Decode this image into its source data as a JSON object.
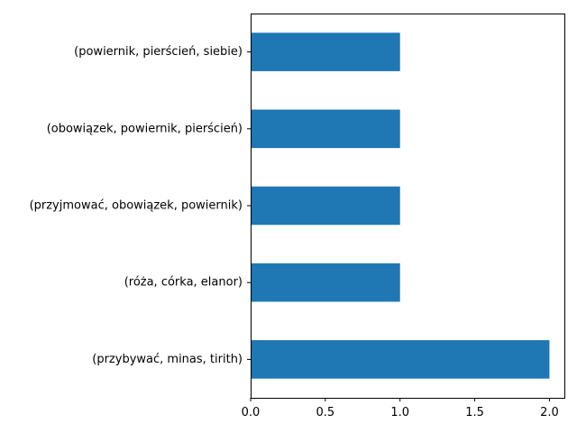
{
  "chart_data": {
    "type": "bar",
    "orientation": "horizontal",
    "categories": [
      "(przybywać, minas, tirith)",
      "(róża, córka, elanor)",
      "(przyjmować, obowiązek, powiernik)",
      "(obowiązek, powiernik, pierścień)",
      "(powiernik, pierścień, siebie)"
    ],
    "values": [
      2,
      1,
      1,
      1,
      1
    ],
    "xlim": [
      0,
      2.1
    ],
    "xticks": [
      0.0,
      0.5,
      1.0,
      1.5,
      2.0
    ],
    "xtick_labels": [
      "0.0",
      "0.5",
      "1.0",
      "1.5",
      "2.0"
    ],
    "title": "",
    "xlabel": "",
    "ylabel": "",
    "bar_color": "#1f77b4",
    "grid": false,
    "legend": "none"
  }
}
